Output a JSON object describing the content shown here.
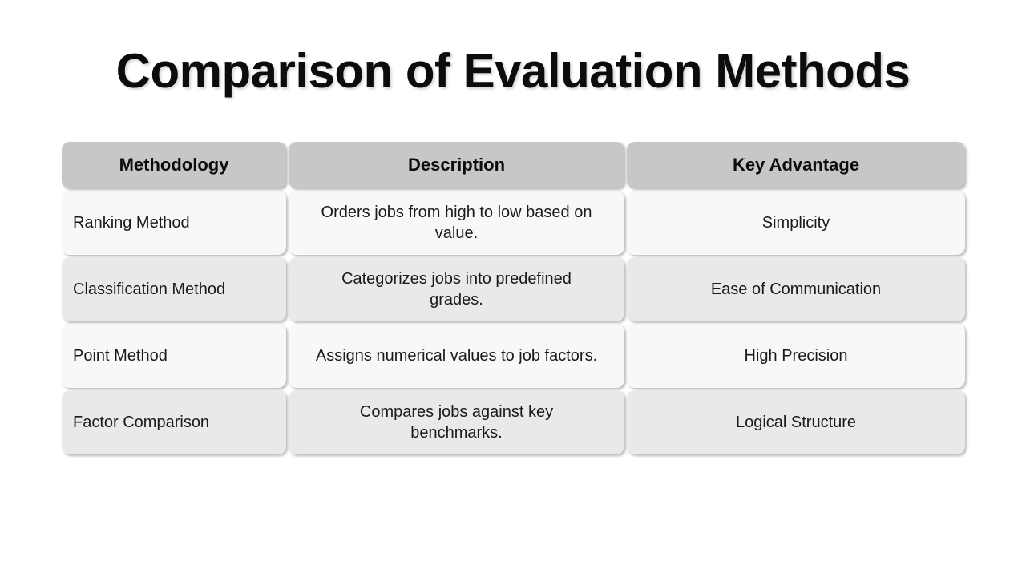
{
  "slide": {
    "title": "Comparison of Evaluation Methods"
  },
  "colors": {
    "background": "#ffffff",
    "header_bg": "#c7c7c7",
    "row_light_bg": "#f8f8f8",
    "row_dark_bg": "#e9e9e9",
    "text": "#1a1a1a"
  },
  "table": {
    "headers": {
      "methodology": "Methodology",
      "description": "Description",
      "advantage": "Key Advantage"
    },
    "rows": [
      {
        "methodology": "Ranking Method",
        "description": "Orders jobs from high to low based on\nvalue.",
        "advantage": "Simplicity"
      },
      {
        "methodology": "Classification Method",
        "description": "Categorizes jobs into predefined\ngrades.",
        "advantage": "Ease of Communication"
      },
      {
        "methodology": "Point Method",
        "description": "Assigns numerical values to job factors.",
        "advantage": "High Precision"
      },
      {
        "methodology": "Factor Comparison",
        "description": "Compares jobs against key\nbenchmarks.",
        "advantage": "Logical Structure"
      }
    ]
  },
  "chart_data": {
    "type": "table",
    "title": "Comparison of Evaluation Methods",
    "columns": [
      "Methodology",
      "Description",
      "Key Advantage"
    ],
    "rows": [
      [
        "Ranking Method",
        "Orders jobs from high to low based on value.",
        "Simplicity"
      ],
      [
        "Classification Method",
        "Categorizes jobs into predefined grades.",
        "Ease of Communication"
      ],
      [
        "Point Method",
        "Assigns numerical values to job factors.",
        "High Precision"
      ],
      [
        "Factor Comparison",
        "Compares jobs against key benchmarks.",
        "Logical Structure"
      ]
    ]
  }
}
